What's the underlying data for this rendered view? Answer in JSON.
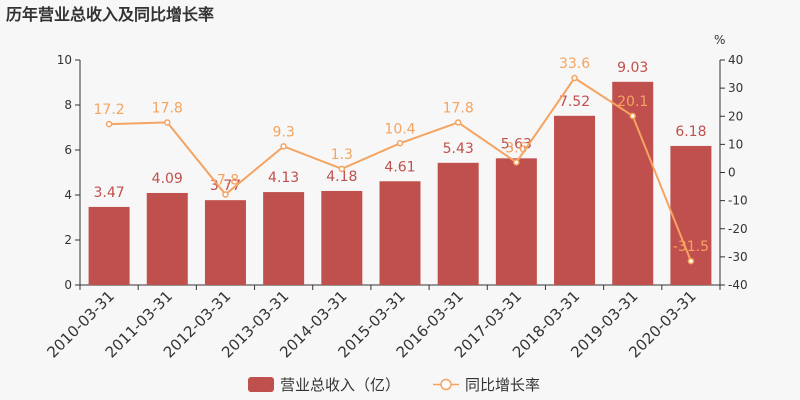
{
  "chart_data": {
    "type": "bar+line",
    "title": "历年营业总收入及同比增长率",
    "categories": [
      "2010-03-31",
      "2011-03-31",
      "2012-03-31",
      "2013-03-31",
      "2014-03-31",
      "2015-03-31",
      "2016-03-31",
      "2017-03-31",
      "2018-03-31",
      "2019-03-31",
      "2020-03-31"
    ],
    "series": [
      {
        "name": "营业总收入（亿）",
        "type": "bar",
        "axis": "left",
        "color": "#c0504d",
        "values": [
          3.47,
          4.09,
          3.77,
          4.13,
          4.18,
          4.61,
          5.43,
          5.63,
          7.52,
          9.03,
          6.18
        ]
      },
      {
        "name": "同比增长率",
        "type": "line",
        "axis": "right",
        "color": "#f4a460",
        "values": [
          17.2,
          17.8,
          -7.8,
          9.3,
          1.3,
          10.4,
          17.8,
          3.6,
          33.6,
          20.1,
          -31.5
        ]
      }
    ],
    "y_left": {
      "min": 0,
      "max": 10,
      "ticks": [
        0,
        2,
        4,
        6,
        8,
        10
      ]
    },
    "y_right": {
      "min": -40,
      "max": 40,
      "ticks": [
        -40,
        -30,
        -20,
        -10,
        0,
        10,
        20,
        30,
        40
      ],
      "unit": "%"
    },
    "legend_position": "bottom-center",
    "grid": false
  }
}
